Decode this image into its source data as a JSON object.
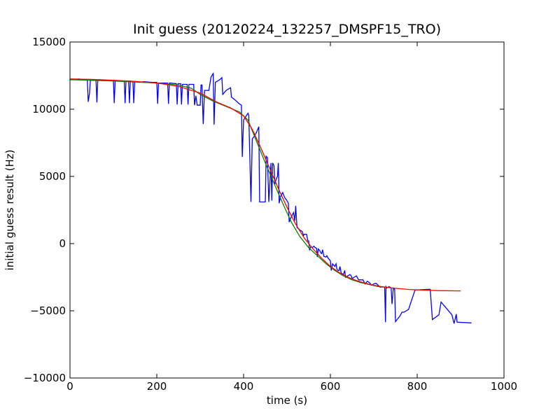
{
  "chart_data": {
    "type": "line",
    "title": "Init guess (20120224_132257_DMSPF15_TRO)",
    "xlabel": "time (s)",
    "ylabel": "initial guess result (Hz)",
    "xlim": [
      0,
      1000
    ],
    "ylim": [
      -10000,
      15000
    ],
    "xticks": [
      0,
      200,
      400,
      600,
      800,
      1000
    ],
    "yticks": [
      -10000,
      -5000,
      0,
      5000,
      10000,
      15000
    ],
    "xtick_labels": [
      "0",
      "200",
      "400",
      "600",
      "800",
      "1000"
    ],
    "ytick_labels": [
      "−10000",
      "−5000",
      "0",
      "5000",
      "10000",
      "15000"
    ],
    "grid": false,
    "legend": "none",
    "series": [
      {
        "color": "#0000ff",
        "points": [
          [
            0,
            12200
          ],
          [
            10,
            12200
          ],
          [
            20,
            12250
          ],
          [
            30,
            12200
          ],
          [
            40,
            12150
          ],
          [
            42,
            10550
          ],
          [
            45,
            11200
          ],
          [
            47,
            12150
          ],
          [
            60,
            12150
          ],
          [
            62,
            10500
          ],
          [
            64,
            12150
          ],
          [
            100,
            12150
          ],
          [
            102,
            10450
          ],
          [
            104,
            12100
          ],
          [
            125,
            12100
          ],
          [
            127,
            10450
          ],
          [
            129,
            12100
          ],
          [
            135,
            12100
          ],
          [
            137,
            10450
          ],
          [
            139,
            12100
          ],
          [
            145,
            12050
          ],
          [
            147,
            10450
          ],
          [
            149,
            12050
          ],
          [
            160,
            12000
          ],
          [
            170,
            12050
          ],
          [
            190,
            12000
          ],
          [
            200,
            12000
          ],
          [
            202,
            10400
          ],
          [
            204,
            11950
          ],
          [
            225,
            11950
          ],
          [
            227,
            10400
          ],
          [
            229,
            11950
          ],
          [
            245,
            11900
          ],
          [
            247,
            10350
          ],
          [
            249,
            11900
          ],
          [
            255,
            11900
          ],
          [
            257,
            10350
          ],
          [
            259,
            11850
          ],
          [
            270,
            11850
          ],
          [
            272,
            10350
          ],
          [
            274,
            11850
          ],
          [
            285,
            11850
          ],
          [
            287,
            10300
          ],
          [
            290,
            11000
          ],
          [
            293,
            10300
          ],
          [
            300,
            10300
          ],
          [
            302,
            11800
          ],
          [
            304,
            11800
          ],
          [
            307,
            8900
          ],
          [
            310,
            11400
          ],
          [
            320,
            11400
          ],
          [
            325,
            12400
          ],
          [
            330,
            12650
          ],
          [
            332,
            8850
          ],
          [
            335,
            12000
          ],
          [
            345,
            12200
          ],
          [
            350,
            12350
          ],
          [
            352,
            11100
          ],
          [
            360,
            11400
          ],
          [
            370,
            11600
          ],
          [
            372,
            10900
          ],
          [
            380,
            10700
          ],
          [
            390,
            10400
          ],
          [
            395,
            10300
          ],
          [
            397,
            6450
          ],
          [
            400,
            9200
          ],
          [
            410,
            9700
          ],
          [
            412,
            9550
          ],
          [
            417,
            3100
          ],
          [
            420,
            7800
          ],
          [
            425,
            8000
          ],
          [
            430,
            8300
          ],
          [
            435,
            8700
          ],
          [
            437,
            3100
          ],
          [
            445,
            3100
          ],
          [
            450,
            3100
          ],
          [
            452,
            6500
          ],
          [
            455,
            6400
          ],
          [
            458,
            3100
          ],
          [
            463,
            6000
          ],
          [
            465,
            3200
          ],
          [
            467,
            6000
          ],
          [
            470,
            5800
          ],
          [
            472,
            4400
          ],
          [
            475,
            4800
          ],
          [
            478,
            5000
          ],
          [
            480,
            6000
          ],
          [
            482,
            3000
          ],
          [
            485,
            3500
          ],
          [
            490,
            3800
          ],
          [
            495,
            3400
          ],
          [
            500,
            3200
          ],
          [
            503,
            3000
          ],
          [
            505,
            1600
          ],
          [
            510,
            2000
          ],
          [
            515,
            2300
          ],
          [
            518,
            1700
          ],
          [
            520,
            2800
          ],
          [
            523,
            1200
          ],
          [
            527,
            1100
          ],
          [
            530,
            1000
          ],
          [
            535,
            900
          ],
          [
            538,
            600
          ],
          [
            540,
            700
          ],
          [
            545,
            700
          ],
          [
            548,
            200
          ],
          [
            550,
            200
          ],
          [
            552,
            -500
          ],
          [
            555,
            -200
          ],
          [
            558,
            -300
          ],
          [
            562,
            -200
          ],
          [
            565,
            -300
          ],
          [
            568,
            -350
          ],
          [
            570,
            -1000
          ],
          [
            572,
            -400
          ],
          [
            575,
            -500
          ],
          [
            578,
            -700
          ],
          [
            580,
            -750
          ],
          [
            582,
            -450
          ],
          [
            585,
            -950
          ],
          [
            590,
            -1000
          ],
          [
            592,
            -900
          ],
          [
            595,
            -1100
          ],
          [
            598,
            -1200
          ],
          [
            600,
            -1300
          ],
          [
            602,
            -2000
          ],
          [
            605,
            -1500
          ],
          [
            610,
            -1700
          ],
          [
            613,
            -1500
          ],
          [
            615,
            -1900
          ],
          [
            618,
            -2000
          ],
          [
            620,
            -2000
          ],
          [
            622,
            -1700
          ],
          [
            625,
            -2200
          ],
          [
            630,
            -2300
          ],
          [
            633,
            -2000
          ],
          [
            635,
            -2500
          ],
          [
            640,
            -2400
          ],
          [
            645,
            -2300
          ],
          [
            648,
            -2400
          ],
          [
            650,
            -2600
          ],
          [
            655,
            -2500
          ],
          [
            660,
            -2400
          ],
          [
            665,
            -2700
          ],
          [
            670,
            -2700
          ],
          [
            675,
            -2700
          ],
          [
            680,
            -3000
          ],
          [
            685,
            -2800
          ],
          [
            690,
            -2900
          ],
          [
            695,
            -3100
          ],
          [
            700,
            -3000
          ],
          [
            705,
            -2950
          ],
          [
            710,
            -3100
          ],
          [
            715,
            -3250
          ],
          [
            720,
            -3200
          ],
          [
            725,
            -3250
          ],
          [
            727,
            -5850
          ],
          [
            728,
            -3200
          ],
          [
            730,
            -3300
          ],
          [
            735,
            -3200
          ],
          [
            740,
            -3300
          ],
          [
            742,
            -4500
          ],
          [
            745,
            -3300
          ],
          [
            748,
            -3400
          ],
          [
            750,
            -5800
          ],
          [
            755,
            -5600
          ],
          [
            760,
            -5400
          ],
          [
            765,
            -5100
          ],
          [
            770,
            -5100
          ],
          [
            780,
            -4900
          ],
          [
            795,
            -3450
          ],
          [
            830,
            -3400
          ],
          [
            835,
            -5650
          ],
          [
            850,
            -5300
          ],
          [
            855,
            -4350
          ],
          [
            880,
            -5300
          ],
          [
            885,
            -5950
          ],
          [
            890,
            -5250
          ],
          [
            892,
            -5850
          ],
          [
            925,
            -5900
          ]
        ]
      },
      {
        "color": "#008000",
        "points": [
          [
            0,
            12200
          ],
          [
            100,
            12100
          ],
          [
            200,
            11950
          ],
          [
            250,
            11800
          ],
          [
            280,
            11550
          ],
          [
            300,
            11100
          ],
          [
            330,
            10600
          ],
          [
            360,
            10200
          ],
          [
            390,
            9800
          ],
          [
            410,
            9200
          ],
          [
            430,
            7600
          ],
          [
            450,
            6000
          ],
          [
            470,
            4500
          ],
          [
            490,
            3000
          ],
          [
            510,
            1600
          ],
          [
            530,
            500
          ],
          [
            550,
            -300
          ],
          [
            570,
            -900
          ],
          [
            590,
            -1500
          ],
          [
            610,
            -2000
          ],
          [
            630,
            -2400
          ],
          [
            650,
            -2700
          ],
          [
            670,
            -2900
          ],
          [
            690,
            -3050
          ],
          [
            710,
            -3200
          ],
          [
            720,
            -3250
          ]
        ]
      },
      {
        "color": "#ff0000",
        "points": [
          [
            0,
            12250
          ],
          [
            50,
            12220
          ],
          [
            100,
            12150
          ],
          [
            150,
            12070
          ],
          [
            200,
            11950
          ],
          [
            250,
            11700
          ],
          [
            300,
            11200
          ],
          [
            340,
            10500
          ],
          [
            370,
            10100
          ],
          [
            400,
            9500
          ],
          [
            420,
            8500
          ],
          [
            440,
            7100
          ],
          [
            460,
            5600
          ],
          [
            480,
            4100
          ],
          [
            500,
            2700
          ],
          [
            520,
            1450
          ],
          [
            540,
            400
          ],
          [
            560,
            -400
          ],
          [
            580,
            -1100
          ],
          [
            600,
            -1700
          ],
          [
            620,
            -2150
          ],
          [
            640,
            -2500
          ],
          [
            660,
            -2750
          ],
          [
            680,
            -2950
          ],
          [
            700,
            -3100
          ],
          [
            720,
            -3220
          ],
          [
            750,
            -3330
          ],
          [
            780,
            -3410
          ],
          [
            810,
            -3460
          ],
          [
            850,
            -3500
          ],
          [
            900,
            -3520
          ]
        ]
      }
    ]
  }
}
